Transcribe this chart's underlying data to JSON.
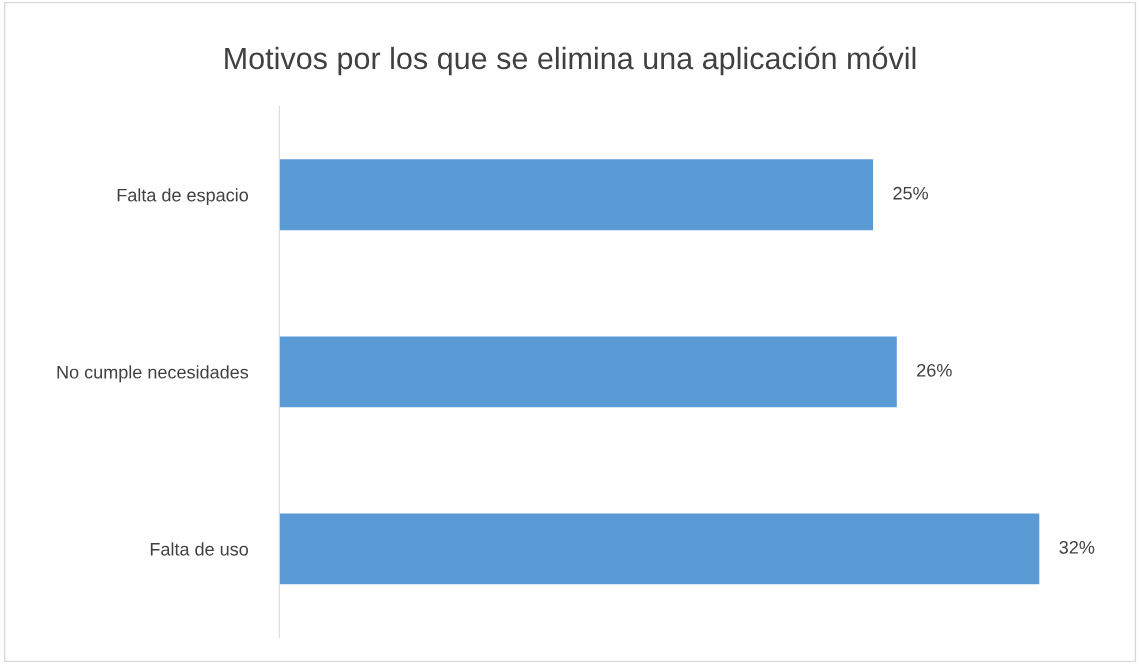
{
  "chart_data": {
    "type": "bar",
    "orientation": "horizontal",
    "title": "Motivos por los que se elimina una aplicación móvil",
    "categories": [
      "Falta de espacio",
      "No cumple necesidades",
      "Falta de uso"
    ],
    "values": [
      25,
      26,
      32
    ],
    "color": "#5b9bd5",
    "value_labels": [
      "25%",
      "26%",
      "32%"
    ],
    "grid": false,
    "legend": false
  }
}
